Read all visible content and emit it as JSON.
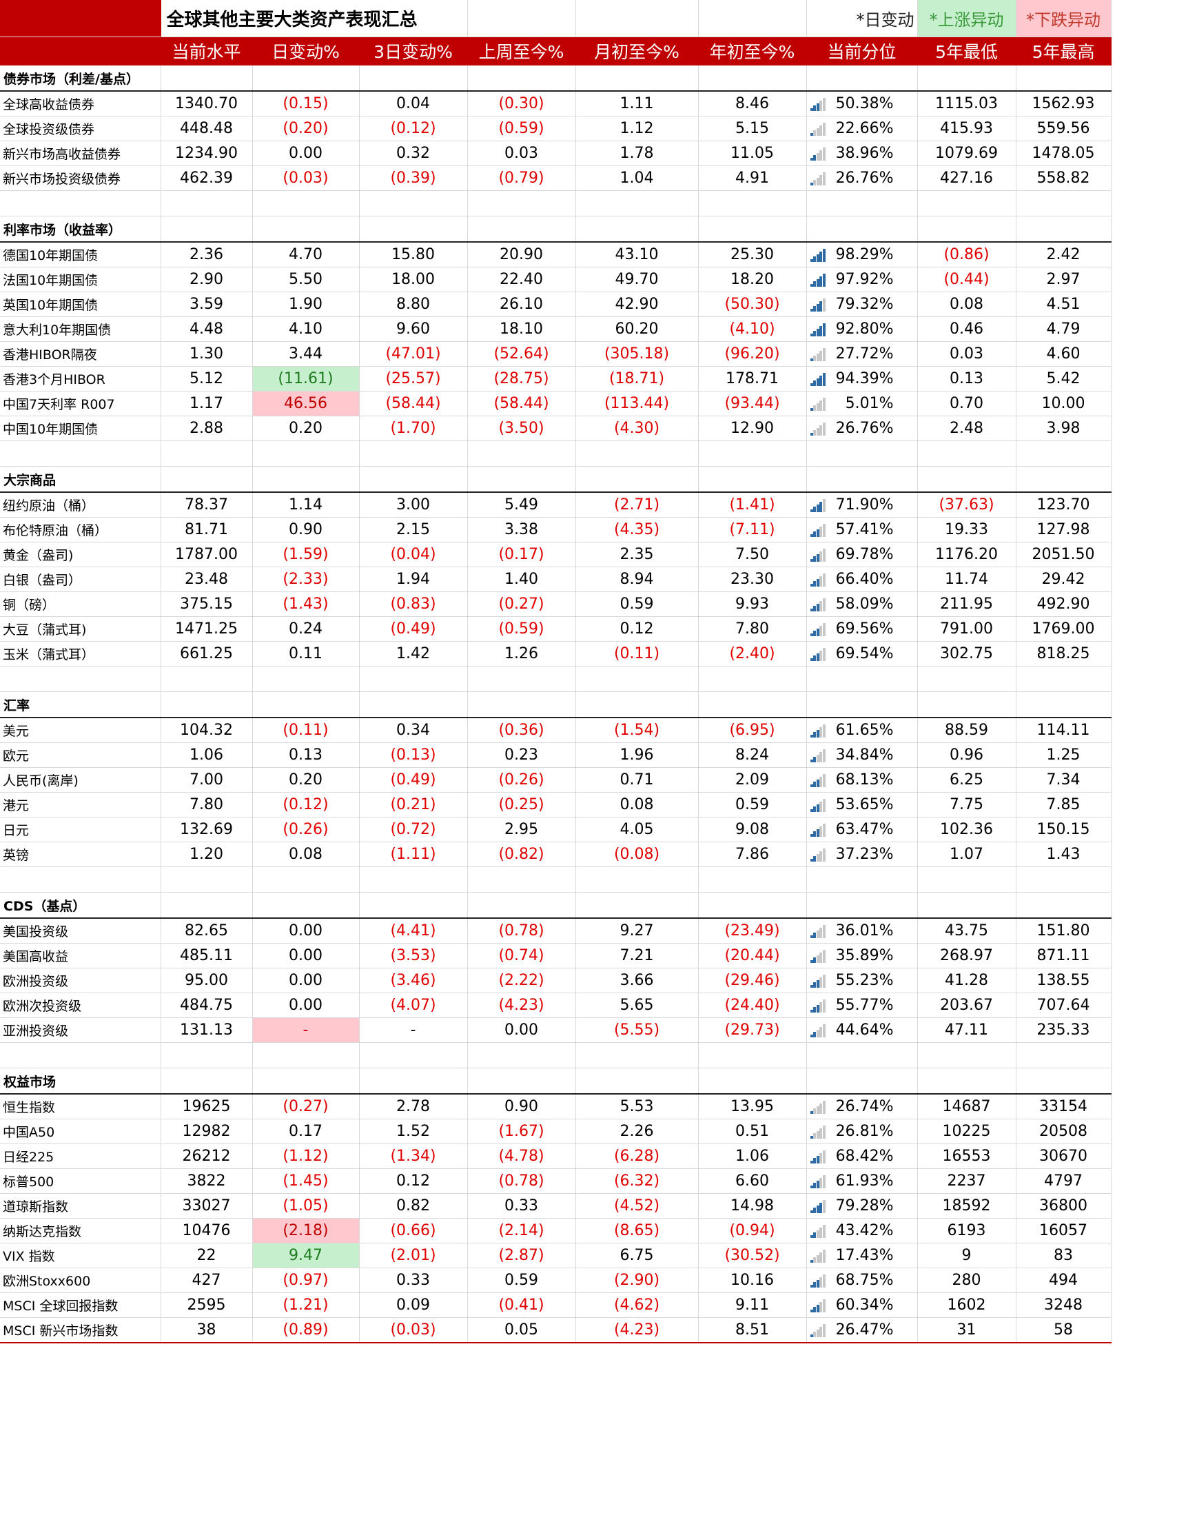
{
  "title": "全球其他主要大类资产表现汇总",
  "legend": {
    "daily": "*日变动",
    "up": "*上涨异动",
    "down": "*下跌异动"
  },
  "columns": [
    "当前水平",
    "日变动%",
    "3日变动%",
    "上周至今%",
    "月初至今%",
    "年初至今%",
    "当前分位",
    "5年最低",
    "5年最高"
  ],
  "colors": {
    "header_bg": "#c00000",
    "negative": "#e00000",
    "up_fill": "#c6efce",
    "down_fill": "#ffc7ce",
    "bar_on": "#2e6aa3",
    "bar_off": "#c8c8c8"
  },
  "sections": [
    {
      "name": "债券市场（利差/基点）",
      "rows": [
        {
          "name": "全球高收益债券",
          "values": [
            "1340.70",
            "(0.15)",
            "0.04",
            "(0.30)",
            "1.11",
            "8.46"
          ],
          "pct": "50.38%",
          "low": "1115.03",
          "high": "1562.93"
        },
        {
          "name": "全球投资级债券",
          "values": [
            "448.48",
            "(0.20)",
            "(0.12)",
            "(0.59)",
            "1.12",
            "5.15"
          ],
          "pct": "22.66%",
          "low": "415.93",
          "high": "559.56"
        },
        {
          "name": "新兴市场高收益债券",
          "values": [
            "1234.90",
            "0.00",
            "0.32",
            "0.03",
            "1.78",
            "11.05"
          ],
          "pct": "38.96%",
          "low": "1079.69",
          "high": "1478.05"
        },
        {
          "name": "新兴市场投资级债券",
          "values": [
            "462.39",
            "(0.03)",
            "(0.39)",
            "(0.79)",
            "1.04",
            "4.91"
          ],
          "pct": "26.76%",
          "low": "427.16",
          "high": "558.82"
        }
      ]
    },
    {
      "name": "利率市场（收益率）",
      "rows": [
        {
          "name": "德国10年期国债",
          "values": [
            "2.36",
            "4.70",
            "15.80",
            "20.90",
            "43.10",
            "25.30"
          ],
          "pct": "98.29%",
          "low": "(0.86)",
          "high": "2.42"
        },
        {
          "name": "法国10年期国债",
          "values": [
            "2.90",
            "5.50",
            "18.00",
            "22.40",
            "49.70",
            "18.20"
          ],
          "pct": "97.92%",
          "low": "(0.44)",
          "high": "2.97"
        },
        {
          "name": "英国10年期国债",
          "values": [
            "3.59",
            "1.90",
            "8.80",
            "26.10",
            "42.90",
            "(50.30)"
          ],
          "pct": "79.32%",
          "low": "0.08",
          "high": "4.51"
        },
        {
          "name": "意大利10年期国债",
          "values": [
            "4.48",
            "4.10",
            "9.60",
            "18.10",
            "60.20",
            "(4.10)"
          ],
          "pct": "92.80%",
          "low": "0.46",
          "high": "4.79"
        },
        {
          "name": "香港HIBOR隔夜",
          "values": [
            "1.30",
            "3.44",
            "(47.01)",
            "(52.64)",
            "(305.18)",
            "(96.20)"
          ],
          "pct": "27.72%",
          "low": "0.03",
          "high": "4.60"
        },
        {
          "name": "香港3个月HIBOR",
          "values": [
            "5.12",
            "(11.61)",
            "(25.57)",
            "(28.75)",
            "(18.71)",
            "178.71"
          ],
          "pct": "94.39%",
          "low": "0.13",
          "high": "5.42",
          "hl": {
            "1": "up"
          }
        },
        {
          "name": "中国7天利率 R007",
          "values": [
            "1.17",
            "46.56",
            "(58.44)",
            "(58.44)",
            "(113.44)",
            "(93.44)"
          ],
          "pct": "5.01%",
          "low": "0.70",
          "high": "10.00",
          "hl": {
            "1": "down"
          }
        },
        {
          "name": "中国10年期国债",
          "values": [
            "2.88",
            "0.20",
            "(1.70)",
            "(3.50)",
            "(4.30)",
            "12.90"
          ],
          "pct": "26.76%",
          "low": "2.48",
          "high": "3.98"
        }
      ]
    },
    {
      "name": "大宗商品",
      "rows": [
        {
          "name": "纽约原油（桶）",
          "values": [
            "78.37",
            "1.14",
            "3.00",
            "5.49",
            "(2.71)",
            "(1.41)"
          ],
          "pct": "71.90%",
          "low": "(37.63)",
          "high": "123.70"
        },
        {
          "name": "布伦特原油（桶）",
          "values": [
            "81.71",
            "0.90",
            "2.15",
            "3.38",
            "(4.35)",
            "(7.11)"
          ],
          "pct": "57.41%",
          "low": "19.33",
          "high": "127.98"
        },
        {
          "name": "黄金（盎司)",
          "values": [
            "1787.00",
            "(1.59)",
            "(0.04)",
            "(0.17)",
            "2.35",
            "7.50"
          ],
          "pct": "69.78%",
          "low": "1176.20",
          "high": "2051.50"
        },
        {
          "name": "白银（盎司）",
          "values": [
            "23.48",
            "(2.33)",
            "1.94",
            "1.40",
            "8.94",
            "23.30"
          ],
          "pct": "66.40%",
          "low": "11.74",
          "high": "29.42"
        },
        {
          "name": "铜（磅）",
          "values": [
            "375.15",
            "(1.43)",
            "(0.83)",
            "(0.27)",
            "0.59",
            "9.93"
          ],
          "pct": "58.09%",
          "low": "211.95",
          "high": "492.90"
        },
        {
          "name": "大豆（蒲式耳)",
          "values": [
            "1471.25",
            "0.24",
            "(0.49)",
            "(0.59)",
            "0.12",
            "7.80"
          ],
          "pct": "69.56%",
          "low": "791.00",
          "high": "1769.00"
        },
        {
          "name": "玉米（蒲式耳）",
          "values": [
            "661.25",
            "0.11",
            "1.42",
            "1.26",
            "(0.11)",
            "(2.40)"
          ],
          "pct": "69.54%",
          "low": "302.75",
          "high": "818.25"
        }
      ]
    },
    {
      "name": "汇率",
      "rows": [
        {
          "name": "美元",
          "values": [
            "104.32",
            "(0.11)",
            "0.34",
            "(0.36)",
            "(1.54)",
            "(6.95)"
          ],
          "pct": "61.65%",
          "low": "88.59",
          "high": "114.11"
        },
        {
          "name": "欧元",
          "values": [
            "1.06",
            "0.13",
            "(0.13)",
            "0.23",
            "1.96",
            "8.24"
          ],
          "pct": "34.84%",
          "low": "0.96",
          "high": "1.25"
        },
        {
          "name": "人民币(离岸)",
          "values": [
            "7.00",
            "0.20",
            "(0.49)",
            "(0.26)",
            "0.71",
            "2.09"
          ],
          "pct": "68.13%",
          "low": "6.25",
          "high": "7.34"
        },
        {
          "name": "港元",
          "values": [
            "7.80",
            "(0.12)",
            "(0.21)",
            "(0.25)",
            "0.08",
            "0.59"
          ],
          "pct": "53.65%",
          "low": "7.75",
          "high": "7.85"
        },
        {
          "name": "日元",
          "values": [
            "132.69",
            "(0.26)",
            "(0.72)",
            "2.95",
            "4.05",
            "9.08"
          ],
          "pct": "63.47%",
          "low": "102.36",
          "high": "150.15"
        },
        {
          "name": "英镑",
          "values": [
            "1.20",
            "0.08",
            "(1.11)",
            "(0.82)",
            "(0.08)",
            "7.86"
          ],
          "pct": "37.23%",
          "low": "1.07",
          "high": "1.43"
        }
      ]
    },
    {
      "name": "CDS（基点）",
      "rows": [
        {
          "name": "美国投资级",
          "values": [
            "82.65",
            "0.00",
            "(4.41)",
            "(0.78)",
            "9.27",
            "(23.49)"
          ],
          "pct": "36.01%",
          "low": "43.75",
          "high": "151.80"
        },
        {
          "name": "美国高收益",
          "values": [
            "485.11",
            "0.00",
            "(3.53)",
            "(0.74)",
            "7.21",
            "(20.44)"
          ],
          "pct": "35.89%",
          "low": "268.97",
          "high": "871.11"
        },
        {
          "name": "欧洲投资级",
          "values": [
            "95.00",
            "0.00",
            "(3.46)",
            "(2.22)",
            "3.66",
            "(29.46)"
          ],
          "pct": "55.23%",
          "low": "41.28",
          "high": "138.55"
        },
        {
          "name": "欧洲次投资级",
          "values": [
            "484.75",
            "0.00",
            "(4.07)",
            "(4.23)",
            "5.65",
            "(24.40)"
          ],
          "pct": "55.77%",
          "low": "203.67",
          "high": "707.64"
        },
        {
          "name": "亚洲投资级",
          "values": [
            "131.13",
            "-",
            "-",
            "0.00",
            "(5.55)",
            "(29.73)"
          ],
          "pct": "44.64%",
          "low": "47.11",
          "high": "235.33",
          "hl": {
            "1": "down"
          }
        }
      ]
    },
    {
      "name": "权益市场",
      "rows": [
        {
          "name": "恒生指数",
          "values": [
            "19625",
            "(0.27)",
            "2.78",
            "0.90",
            "5.53",
            "13.95"
          ],
          "pct": "26.74%",
          "low": "14687",
          "high": "33154"
        },
        {
          "name": "中国A50",
          "values": [
            "12982",
            "0.17",
            "1.52",
            "(1.67)",
            "2.26",
            "0.51"
          ],
          "pct": "26.81%",
          "low": "10225",
          "high": "20508"
        },
        {
          "name": "日经225",
          "values": [
            "26212",
            "(1.12)",
            "(1.34)",
            "(4.78)",
            "(6.28)",
            "1.06"
          ],
          "pct": "68.42%",
          "low": "16553",
          "high": "30670"
        },
        {
          "name": "标普500",
          "values": [
            "3822",
            "(1.45)",
            "0.12",
            "(0.78)",
            "(6.32)",
            "6.60"
          ],
          "pct": "61.93%",
          "low": "2237",
          "high": "4797"
        },
        {
          "name": "道琼斯指数",
          "values": [
            "33027",
            "(1.05)",
            "0.82",
            "0.33",
            "(4.52)",
            "14.98"
          ],
          "pct": "79.28%",
          "low": "18592",
          "high": "36800"
        },
        {
          "name": "纳斯达克指数",
          "values": [
            "10476",
            "(2.18)",
            "(0.66)",
            "(2.14)",
            "(8.65)",
            "(0.94)"
          ],
          "pct": "43.42%",
          "low": "6193",
          "high": "16057",
          "hl": {
            "1": "down"
          }
        },
        {
          "name": "VIX 指数",
          "values": [
            "22",
            "9.47",
            "(2.01)",
            "(2.87)",
            "6.75",
            "(30.52)"
          ],
          "pct": "17.43%",
          "low": "9",
          "high": "83",
          "hl": {
            "1": "up"
          }
        },
        {
          "name": "欧洲Stoxx600",
          "values": [
            "427",
            "(0.97)",
            "0.33",
            "0.59",
            "(2.90)",
            "10.16"
          ],
          "pct": "68.75%",
          "low": "280",
          "high": "494"
        },
        {
          "name": "MSCI 全球回报指数",
          "values": [
            "2595",
            "(1.21)",
            "0.09",
            "(0.41)",
            "(4.62)",
            "9.11"
          ],
          "pct": "60.34%",
          "low": "1602",
          "high": "3248"
        },
        {
          "name": "MSCI 新兴市场指数",
          "values": [
            "38",
            "(0.89)",
            "(0.03)",
            "0.05",
            "(4.23)",
            "8.51"
          ],
          "pct": "26.47%",
          "low": "31",
          "high": "58"
        }
      ]
    }
  ]
}
